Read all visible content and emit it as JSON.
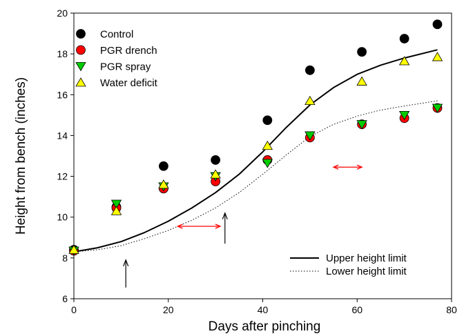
{
  "chart_data": {
    "type": "scatter",
    "xlabel": "Days after pinching",
    "ylabel": "Height from bench (inches)",
    "xlim": [
      0,
      80
    ],
    "ylim": [
      6,
      20
    ],
    "x_ticks": [
      0,
      20,
      40,
      60,
      80
    ],
    "y_ticks": [
      6,
      8,
      10,
      12,
      14,
      16,
      18,
      20
    ],
    "x_tick_labels": [
      "0",
      "20",
      "40",
      "60",
      "80"
    ],
    "y_tick_labels": [
      "6",
      "8",
      "10",
      "12",
      "14",
      "16",
      "18",
      "20"
    ],
    "series": [
      {
        "name": "Control",
        "marker": "circle",
        "color": "#000000",
        "x": [
          0,
          9,
          19,
          30,
          41,
          50,
          61,
          70,
          77
        ],
        "y": [
          8.4,
          10.5,
          12.5,
          12.8,
          14.75,
          17.2,
          18.1,
          18.75,
          19.45
        ]
      },
      {
        "name": "PGR drench",
        "marker": "circle",
        "color": "#ff0000",
        "x": [
          0,
          9,
          19,
          30,
          41,
          50,
          61,
          70,
          77
        ],
        "y": [
          8.35,
          10.45,
          11.4,
          11.75,
          12.8,
          13.9,
          14.55,
          14.85,
          15.35
        ]
      },
      {
        "name": "PGR spray",
        "marker": "triangle-down",
        "color": "#00cc00",
        "x": [
          0,
          9,
          19,
          30,
          41,
          50,
          61,
          70,
          77
        ],
        "y": [
          8.35,
          10.65,
          11.5,
          12.0,
          12.65,
          14.0,
          14.55,
          15.0,
          15.35
        ]
      },
      {
        "name": "Water deficit",
        "marker": "triangle-up",
        "color": "#ffff00",
        "x": [
          0,
          9,
          19,
          30,
          41,
          50,
          61,
          70,
          77
        ],
        "y": [
          8.4,
          10.3,
          11.6,
          12.1,
          13.5,
          15.7,
          16.65,
          17.65,
          17.85
        ]
      }
    ],
    "lines": [
      {
        "name": "Upper height limit",
        "style": "solid",
        "x": [
          0,
          5,
          10,
          15,
          20,
          25,
          30,
          35,
          40,
          45,
          50,
          55,
          60,
          65,
          70,
          77
        ],
        "y": [
          8.3,
          8.5,
          8.8,
          9.25,
          9.8,
          10.45,
          11.2,
          12.1,
          13.2,
          14.4,
          15.5,
          16.35,
          17.0,
          17.45,
          17.8,
          18.2
        ]
      },
      {
        "name": "Lower height limit",
        "style": "dotted",
        "x": [
          0,
          5,
          10,
          15,
          20,
          25,
          30,
          35,
          40,
          45,
          50,
          55,
          60,
          65,
          70,
          77
        ],
        "y": [
          8.3,
          8.4,
          8.6,
          8.95,
          9.35,
          9.85,
          10.45,
          11.2,
          12.1,
          13.05,
          13.95,
          14.55,
          14.95,
          15.25,
          15.45,
          15.7
        ]
      }
    ],
    "annotations": [
      {
        "type": "arrow-up",
        "color": "#000000",
        "x": 11,
        "y_from": 6.55,
        "y_to": 7.9
      },
      {
        "type": "arrow-up",
        "color": "#000000",
        "x": 32,
        "y_from": 8.7,
        "y_to": 10.2
      },
      {
        "type": "double-arrow",
        "color": "#ff0000",
        "x_from": 22,
        "x_to": 31,
        "y": 9.55
      },
      {
        "type": "double-arrow",
        "color": "#ff0000",
        "x_from": 55,
        "x_to": 61,
        "y": 12.45
      }
    ],
    "legend_placement": "top-left",
    "line_legend_placement": "bottom-right",
    "grid": false
  }
}
